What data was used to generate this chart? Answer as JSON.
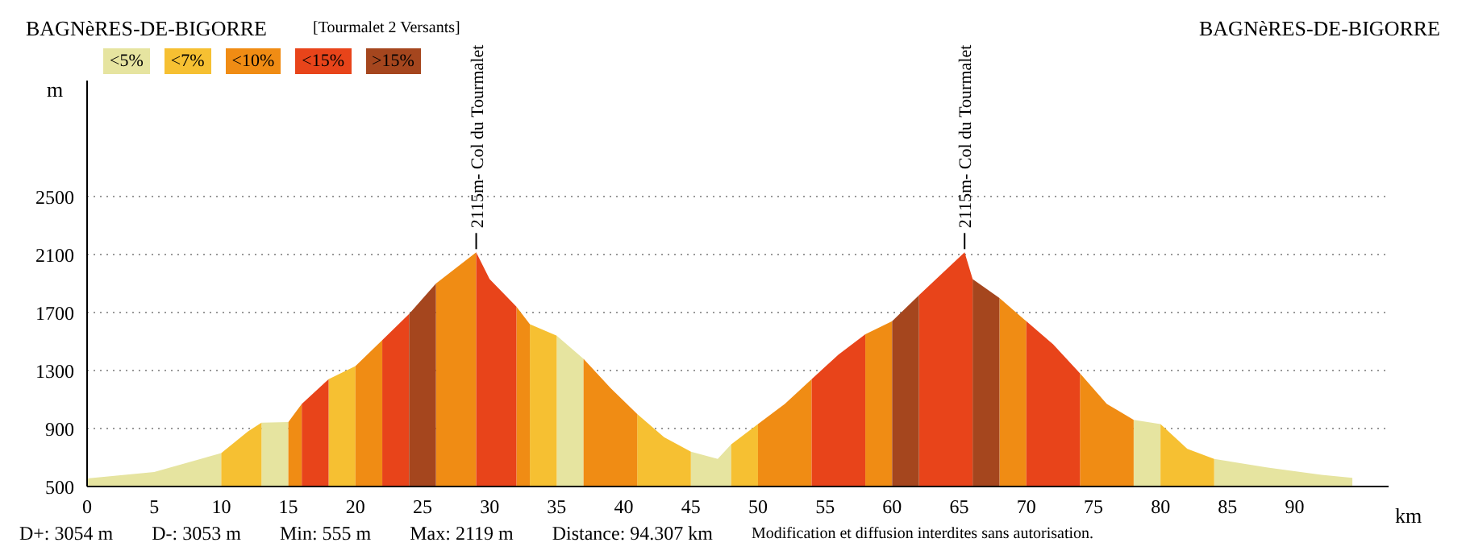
{
  "chart_data": {
    "type": "area",
    "title": "[Tourmalet 2 Versants]",
    "xlabel": "km",
    "ylabel": "m",
    "annotations": [
      "BAGNèRES-DE-BIGORRE",
      "BAGNèRES-DE-BIGORRE",
      "D+: 3054 m",
      "D-: 3053 m",
      "Min: 555 m",
      "Max: 2119 m",
      "Distance: 94.307 km",
      "Modification et diffusion interdites sans autorisation.",
      {
        "text": "2115m- Col du Tourmalet",
        "x": 29,
        "y": 2115
      },
      {
        "text": "2115m- Col du Tourmalet",
        "x": 65.4,
        "y": 2115
      }
    ],
    "x": [
      0,
      5,
      10,
      12,
      13,
      15,
      16,
      18,
      20,
      22,
      24,
      26,
      29,
      30,
      32,
      33,
      35,
      37,
      39,
      41,
      43,
      45,
      47,
      48,
      50,
      52,
      54,
      56,
      58,
      60,
      62,
      65.4,
      66,
      68,
      70,
      72,
      74,
      76,
      78,
      80,
      82,
      84,
      88,
      92,
      94.3
    ],
    "series": [
      {
        "name": "<5%",
        "color": "#e6e4a0",
        "values": [
          555,
          600,
          730,
          null,
          940,
          945,
          null,
          null,
          null,
          null,
          null,
          null,
          null,
          null,
          null,
          null,
          1540,
          1380,
          null,
          null,
          null,
          740,
          690,
          790,
          null,
          null,
          null,
          null,
          null,
          null,
          null,
          null,
          null,
          null,
          null,
          null,
          null,
          null,
          960,
          930,
          null,
          690,
          630,
          580,
          560
        ]
      },
      {
        "name": "<7%",
        "color": "#f6c032",
        "values": [
          null,
          null,
          730,
          880,
          940,
          null,
          null,
          1240,
          1330,
          null,
          null,
          null,
          null,
          null,
          null,
          1620,
          1540,
          null,
          null,
          1000,
          840,
          740,
          null,
          790,
          930,
          null,
          null,
          null,
          null,
          null,
          null,
          null,
          null,
          null,
          null,
          null,
          null,
          null,
          null,
          930,
          760,
          690,
          null,
          null,
          null
        ]
      },
      {
        "name": "<10%",
        "color": "#f08c14",
        "values": [
          null,
          null,
          null,
          null,
          null,
          945,
          1070,
          null,
          1330,
          1510,
          null,
          1900,
          2115,
          null,
          1740,
          1620,
          null,
          1380,
          1180,
          1000,
          null,
          null,
          null,
          null,
          930,
          1070,
          1240,
          null,
          1550,
          1640,
          null,
          null,
          null,
          1800,
          1640,
          null,
          1280,
          1070,
          960,
          null,
          null,
          null,
          null,
          null,
          null
        ]
      },
      {
        "name": "<15%",
        "color": "#e8441a",
        "values": [
          null,
          null,
          null,
          null,
          null,
          null,
          1070,
          1240,
          null,
          1510,
          1690,
          null,
          2115,
          1930,
          1740,
          null,
          null,
          null,
          null,
          null,
          null,
          null,
          null,
          null,
          null,
          null,
          1240,
          1410,
          1550,
          null,
          1820,
          2115,
          1930,
          null,
          1640,
          1480,
          1280,
          null,
          null,
          null,
          null,
          null,
          null,
          null,
          null
        ]
      },
      {
        "name": ">15%",
        "color": "#a5461e",
        "values": [
          null,
          null,
          null,
          null,
          null,
          null,
          null,
          null,
          null,
          null,
          1690,
          1900,
          null,
          null,
          null,
          null,
          null,
          null,
          null,
          null,
          null,
          null,
          null,
          null,
          null,
          null,
          null,
          null,
          null,
          1640,
          1820,
          null,
          1930,
          1800,
          null,
          null,
          null,
          null,
          null,
          null,
          null,
          null,
          null,
          null,
          null
        ]
      }
    ],
    "xlim": [
      0,
      97
    ],
    "xticks": [
      0,
      5,
      10,
      15,
      20,
      25,
      30,
      35,
      40,
      45,
      50,
      55,
      60,
      65,
      70,
      75,
      80,
      85,
      90
    ],
    "ylim": [
      500,
      3300
    ],
    "yticks": [
      500,
      900,
      1300,
      1700,
      2100,
      2500
    ],
    "grid": "y",
    "legend": "top left"
  }
}
